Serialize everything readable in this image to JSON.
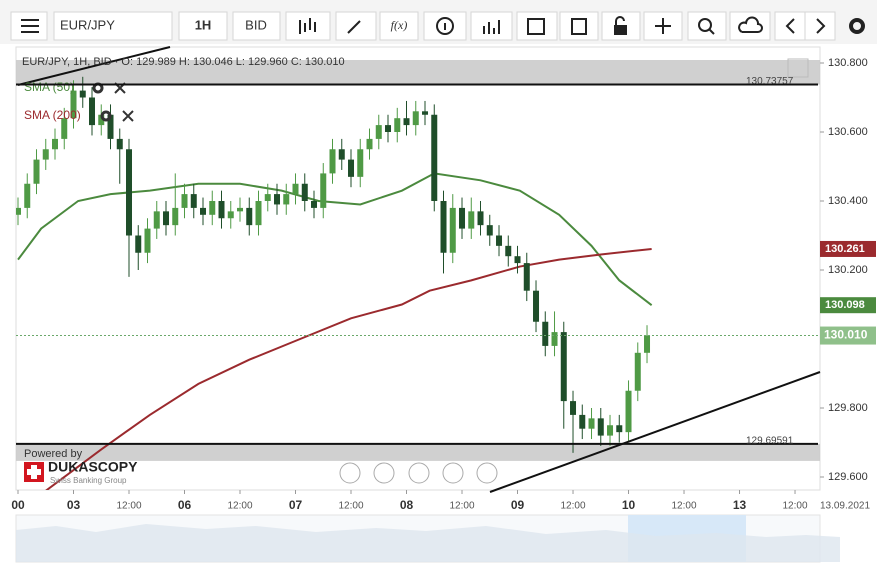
{
  "toolbar": {
    "instrument": "EUR/JPY",
    "period": "1H",
    "side": "BID",
    "function_button": "f(x)"
  },
  "chart_data": {
    "type": "candlestick",
    "info_line": "EUR/JPY, 1H, BID · O: 129.989 H: 130.046 L: 129.960 C: 130.010",
    "up_color": "#4f9a45",
    "down_color": "#1f4e2a",
    "x": [
      0,
      2,
      4,
      6,
      8,
      10,
      12,
      14,
      16,
      18,
      20,
      22,
      24,
      26,
      28,
      30,
      32,
      34,
      36,
      38,
      40,
      42,
      44,
      46,
      48,
      50,
      52,
      54,
      56,
      58,
      60,
      62,
      64,
      66,
      68,
      70,
      72,
      74,
      76,
      78,
      80,
      82,
      84,
      86,
      88,
      90,
      92,
      94,
      96,
      98,
      100,
      102,
      104,
      106,
      108,
      110,
      112,
      114,
      116,
      118,
      120,
      122,
      124,
      126,
      128,
      130,
      132,
      134,
      136
    ],
    "ohlc": [
      [
        130.36,
        130.41,
        130.33,
        130.38
      ],
      [
        130.38,
        130.48,
        130.35,
        130.45
      ],
      [
        130.45,
        130.55,
        130.42,
        130.52
      ],
      [
        130.52,
        130.58,
        130.49,
        130.55
      ],
      [
        130.55,
        130.61,
        130.52,
        130.58
      ],
      [
        130.58,
        130.67,
        130.55,
        130.64
      ],
      [
        130.64,
        130.75,
        130.61,
        130.72
      ],
      [
        130.72,
        130.76,
        130.67,
        130.7
      ],
      [
        130.7,
        130.73,
        130.59,
        130.62
      ],
      [
        130.62,
        130.68,
        130.59,
        130.65
      ],
      [
        130.65,
        130.68,
        130.55,
        130.58
      ],
      [
        130.58,
        130.61,
        130.45,
        130.55
      ],
      [
        130.55,
        130.58,
        130.18,
        130.3
      ],
      [
        130.3,
        130.33,
        130.2,
        130.25
      ],
      [
        130.25,
        130.35,
        130.22,
        130.32
      ],
      [
        130.32,
        130.4,
        130.29,
        130.37
      ],
      [
        130.37,
        130.4,
        130.3,
        130.33
      ],
      [
        130.33,
        130.48,
        130.3,
        130.38
      ],
      [
        130.38,
        130.45,
        130.35,
        130.42
      ],
      [
        130.42,
        130.45,
        130.35,
        130.38
      ],
      [
        130.38,
        130.41,
        130.33,
        130.36
      ],
      [
        130.36,
        130.43,
        130.33,
        130.4
      ],
      [
        130.4,
        130.43,
        130.32,
        130.35
      ],
      [
        130.35,
        130.4,
        130.32,
        130.37
      ],
      [
        130.37,
        130.41,
        130.34,
        130.38
      ],
      [
        130.38,
        130.41,
        130.3,
        130.33
      ],
      [
        130.33,
        130.43,
        130.3,
        130.4
      ],
      [
        130.4,
        130.45,
        130.37,
        130.42
      ],
      [
        130.42,
        130.45,
        130.36,
        130.39
      ],
      [
        130.39,
        130.45,
        130.36,
        130.42
      ],
      [
        130.42,
        130.48,
        130.39,
        130.45
      ],
      [
        130.45,
        130.48,
        130.37,
        130.4
      ],
      [
        130.4,
        130.43,
        130.35,
        130.38
      ],
      [
        130.38,
        130.51,
        130.35,
        130.48
      ],
      [
        130.48,
        130.58,
        130.45,
        130.55
      ],
      [
        130.55,
        130.58,
        130.49,
        130.52
      ],
      [
        130.52,
        130.55,
        130.44,
        130.47
      ],
      [
        130.47,
        130.58,
        130.44,
        130.55
      ],
      [
        130.55,
        130.61,
        130.52,
        130.58
      ],
      [
        130.58,
        130.65,
        130.55,
        130.62
      ],
      [
        130.62,
        130.65,
        130.57,
        130.6
      ],
      [
        130.6,
        130.67,
        130.57,
        130.64
      ],
      [
        130.64,
        130.69,
        130.59,
        130.62
      ],
      [
        130.62,
        130.69,
        130.59,
        130.66
      ],
      [
        130.66,
        130.69,
        130.62,
        130.65
      ],
      [
        130.65,
        130.68,
        130.37,
        130.4
      ],
      [
        130.4,
        130.43,
        130.19,
        130.25
      ],
      [
        130.25,
        130.42,
        130.22,
        130.38
      ],
      [
        130.38,
        130.41,
        130.29,
        130.32
      ],
      [
        130.32,
        130.41,
        130.29,
        130.37
      ],
      [
        130.37,
        130.4,
        130.3,
        130.33
      ],
      [
        130.33,
        130.36,
        130.27,
        130.3
      ],
      [
        130.3,
        130.33,
        130.24,
        130.27
      ],
      [
        130.27,
        130.3,
        130.21,
        130.24
      ],
      [
        130.24,
        130.27,
        130.19,
        130.22
      ],
      [
        130.22,
        130.25,
        130.11,
        130.14
      ],
      [
        130.14,
        130.17,
        130.02,
        130.05
      ],
      [
        130.05,
        130.08,
        129.95,
        129.98
      ],
      [
        129.98,
        130.08,
        129.95,
        130.02
      ],
      [
        130.02,
        130.05,
        129.74,
        129.82
      ],
      [
        129.82,
        129.85,
        129.67,
        129.78
      ],
      [
        129.78,
        129.81,
        129.71,
        129.74
      ],
      [
        129.74,
        129.8,
        129.71,
        129.77
      ],
      [
        129.77,
        129.8,
        129.69,
        129.72
      ],
      [
        129.72,
        129.78,
        129.69,
        129.75
      ],
      [
        129.75,
        129.78,
        129.7,
        129.73
      ],
      [
        129.73,
        129.88,
        129.7,
        129.85
      ],
      [
        129.85,
        129.99,
        129.82,
        129.96
      ],
      [
        129.96,
        130.04,
        129.93,
        130.01
      ]
    ],
    "overlays": [
      {
        "name": "SMA (50)",
        "color": "#4b8a3e",
        "x": [
          0,
          5,
          13,
          20,
          28.5,
          39,
          48,
          57,
          65,
          74,
          83,
          90,
          100,
          108.5,
          117,
          124,
          130,
          137
        ],
        "values": [
          130.23,
          130.32,
          130.4,
          130.42,
          130.43,
          130.45,
          130.45,
          130.43,
          130.4,
          130.39,
          130.43,
          130.48,
          130.46,
          130.43,
          130.36,
          130.27,
          130.17,
          130.098
        ]
      },
      {
        "name": "SMA (200)",
        "color": "#9b2a2e",
        "x": [
          6,
          18,
          28.5,
          39,
          50,
          61,
          72,
          83,
          89,
          98,
          108.5,
          117,
          126,
          137
        ],
        "values": [
          129.56,
          129.68,
          129.78,
          129.87,
          129.94,
          130.0,
          130.06,
          130.1,
          130.14,
          130.17,
          130.21,
          130.23,
          130.245,
          130.261
        ]
      }
    ],
    "levels": [
      130.73757,
      129.69591
    ],
    "last_price": {
      "value": 130.01,
      "label": "130.010"
    },
    "xlim": [
      0,
      173.4
    ],
    "ylim": [
      129.6,
      130.8
    ],
    "yticks": [
      {
        "value": 130.8,
        "label": "130.800"
      },
      {
        "value": 130.6,
        "label": "130.600"
      },
      {
        "value": 130.4,
        "label": "130.400"
      },
      {
        "value": 130.2,
        "label": "130.200"
      },
      {
        "value": 129.8,
        "label": "129.800"
      },
      {
        "value": 129.6,
        "label": "129.600"
      }
    ],
    "xticks": [
      {
        "value": 0,
        "label": "00"
      },
      {
        "value": 12,
        "label": "03"
      },
      {
        "value": 24,
        "label": "12:00"
      },
      {
        "value": 36,
        "label": "06"
      },
      {
        "value": 48,
        "label": "12:00"
      },
      {
        "value": 60,
        "label": "07"
      },
      {
        "value": 72,
        "label": "12:00"
      },
      {
        "value": 84,
        "label": "08"
      },
      {
        "value": 96,
        "label": "12:00"
      },
      {
        "value": 108,
        "label": "09"
      },
      {
        "value": 120,
        "label": "12:00"
      },
      {
        "value": 132,
        "label": "10"
      },
      {
        "value": 144,
        "label": "12:00"
      },
      {
        "value": 156,
        "label": "13"
      },
      {
        "value": 168,
        "label": "12:00"
      }
    ],
    "date_label": "13.09.2021",
    "grid": false
  },
  "branding": {
    "powered": "Powered by",
    "name": "DUKASCOPY",
    "tagline": "Swiss Banking Group"
  }
}
